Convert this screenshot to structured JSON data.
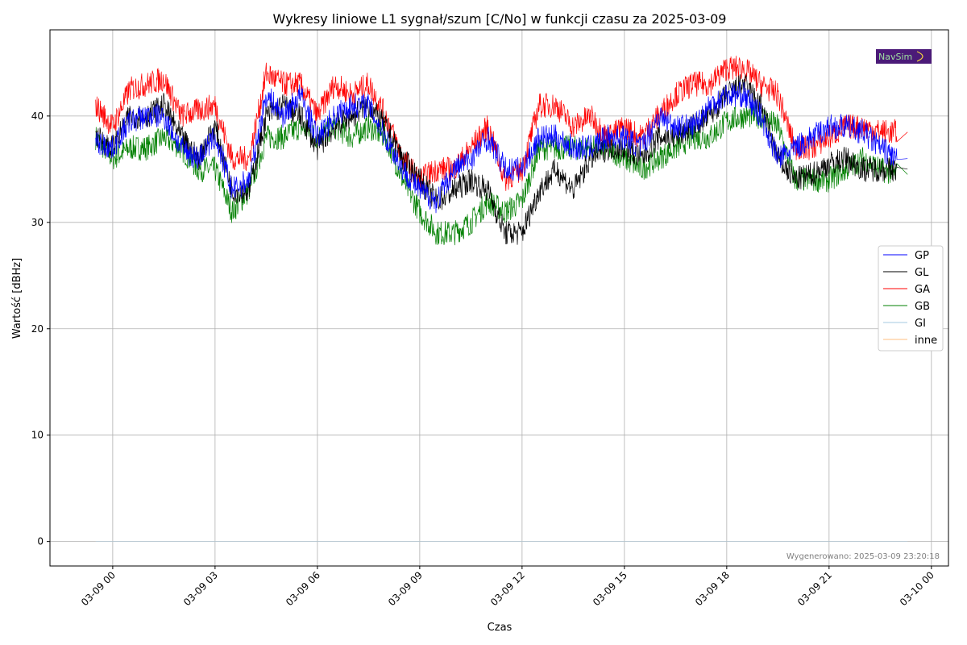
{
  "chart_data": {
    "type": "line",
    "title": "Wykresy liniowe L1 sygnał/szum [C/No] w funkcji czasu za 2025-03-09",
    "xlabel": "Czas",
    "ylabel": "Wartość [dBHz]",
    "x_unit": "hours since 2025-03-09 00:00",
    "xlim": [
      -1.84,
      24.5
    ],
    "ylim": [
      -2.3,
      48.1
    ],
    "grid": true,
    "legend_placement": "center-right",
    "yticks": [
      0,
      10,
      20,
      30,
      40
    ],
    "xticks": [
      {
        "v": 0,
        "label": "03-09 00"
      },
      {
        "v": 3,
        "label": "03-09 03"
      },
      {
        "v": 6,
        "label": "03-09 06"
      },
      {
        "v": 9,
        "label": "03-09 09"
      },
      {
        "v": 12,
        "label": "03-09 12"
      },
      {
        "v": 15,
        "label": "03-09 15"
      },
      {
        "v": 18,
        "label": "03-09 18"
      },
      {
        "v": 21,
        "label": "03-09 21"
      },
      {
        "v": 24,
        "label": "03-10 00"
      }
    ],
    "x": [
      -0.5,
      0,
      0.5,
      1,
      1.5,
      2,
      2.5,
      3,
      3.5,
      4,
      4.5,
      5,
      5.5,
      6,
      6.5,
      7,
      7.5,
      8,
      8.5,
      9,
      9.5,
      10,
      10.5,
      11,
      11.5,
      12,
      12.5,
      13,
      13.5,
      14,
      14.5,
      15,
      15.5,
      16,
      16.5,
      17,
      17.5,
      18,
      18.5,
      19,
      19.5,
      20,
      20.5,
      21,
      21.5,
      22,
      22.5,
      23
    ],
    "series": [
      {
        "name": "GP",
        "color": "#0000ff",
        "values": [
          37.5,
          37,
          39.5,
          40,
          40,
          37,
          36,
          38,
          33,
          34,
          42,
          40,
          42,
          38,
          40,
          41,
          41,
          38,
          35,
          33,
          32,
          35,
          36,
          38,
          35,
          35,
          38,
          38,
          37,
          37,
          38,
          38,
          37,
          40,
          39,
          39,
          41,
          42,
          42,
          40,
          36,
          37,
          38,
          39,
          39,
          38.5,
          37,
          36
        ]
      },
      {
        "name": "GL",
        "color": "#000000",
        "values": [
          38,
          37,
          40,
          40,
          41,
          38,
          36,
          39,
          33,
          33,
          40,
          41,
          40,
          37,
          39,
          40,
          41,
          39,
          36,
          34,
          32,
          33,
          34,
          33,
          29,
          29,
          33,
          35,
          33,
          36,
          37,
          37,
          36,
          38,
          38,
          39,
          40,
          42,
          43,
          41,
          36,
          34,
          34.5,
          35.5,
          36,
          35,
          35,
          35
        ]
      },
      {
        "name": "GA",
        "color": "#ff0000",
        "values": [
          41,
          39,
          42.5,
          43,
          43.5,
          40,
          40.5,
          41,
          36,
          36,
          44,
          43,
          43,
          40,
          43,
          42,
          43,
          40,
          36,
          34,
          35,
          35,
          37,
          39,
          34,
          35,
          41,
          41,
          39,
          40,
          38,
          39,
          38,
          40,
          42,
          43,
          43,
          44.5,
          44.5,
          43,
          42,
          37,
          37,
          38,
          39,
          39,
          38.5,
          38.5
        ]
      },
      {
        "name": "GB",
        "color": "#008000",
        "values": [
          38,
          36,
          37,
          37,
          38,
          37,
          35,
          35,
          31,
          33,
          38,
          38,
          39,
          38,
          39,
          38,
          39,
          38,
          34,
          31,
          29,
          29,
          30,
          32,
          31,
          32,
          37,
          37,
          37,
          37,
          37,
          36,
          35,
          36,
          37,
          38,
          38,
          39.5,
          40,
          40,
          39,
          34,
          34,
          34,
          35,
          36,
          35,
          34.5
        ]
      },
      {
        "name": "GI",
        "color": "#a6c8e0",
        "values": [
          0,
          0,
          0,
          0,
          0,
          0,
          0,
          0,
          0,
          0,
          0,
          0,
          0,
          0,
          0,
          0,
          0,
          0,
          0,
          0,
          0,
          0,
          0,
          0,
          0,
          0,
          0,
          0,
          0,
          0,
          0,
          0,
          0,
          0,
          0,
          0,
          0,
          0,
          0,
          0,
          0,
          0,
          0,
          0,
          0,
          0,
          0,
          0
        ]
      },
      {
        "name": "inne",
        "color": "#ffbf80",
        "values": [
          0,
          0,
          0,
          0,
          0,
          0,
          0,
          0,
          0,
          0,
          0,
          0,
          0,
          0,
          0,
          0,
          0,
          0,
          0,
          0,
          0,
          0,
          0,
          0,
          0,
          0,
          0,
          0,
          0,
          0,
          0,
          0,
          0,
          0,
          0,
          0,
          0,
          0,
          0,
          0,
          0,
          0,
          0,
          0,
          0,
          0,
          0,
          0
        ]
      }
    ],
    "footer": "Wygenerowano: 2025-03-09 23:20:18",
    "logo_text": "NavSim"
  }
}
